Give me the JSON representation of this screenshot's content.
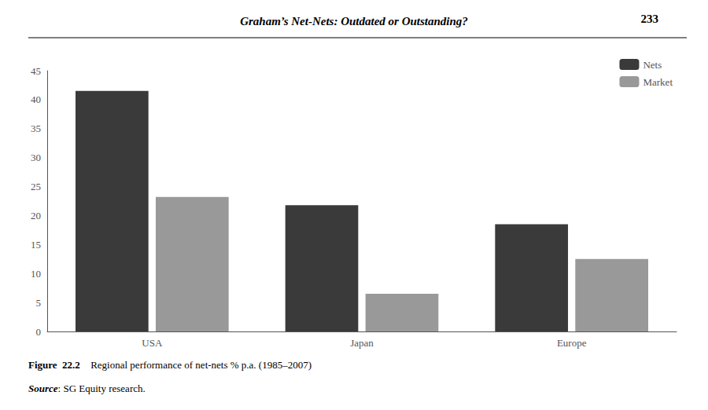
{
  "chart_data": {
    "type": "bar",
    "title": "Graham’s Net-Nets: Outdated or Outstanding?",
    "categories": [
      "USA",
      "Japan",
      "Europe"
    ],
    "series": [
      {
        "name": "Nets",
        "color": "#3a3a3a",
        "values": [
          41.5,
          21.8,
          18.5
        ]
      },
      {
        "name": "Market",
        "color": "#999999",
        "values": [
          23.2,
          6.5,
          12.5
        ]
      }
    ],
    "ylim": [
      0,
      45
    ],
    "yticks": [
      0,
      5,
      10,
      15,
      20,
      25,
      30,
      35,
      40,
      45
    ],
    "grid": false,
    "legend": "upper right",
    "annotations": [
      "233",
      "Figure  22.2",
      "Regional performance of net-nets % p.a. (1985–2007)",
      "Source",
      ": SG Equity research."
    ]
  }
}
